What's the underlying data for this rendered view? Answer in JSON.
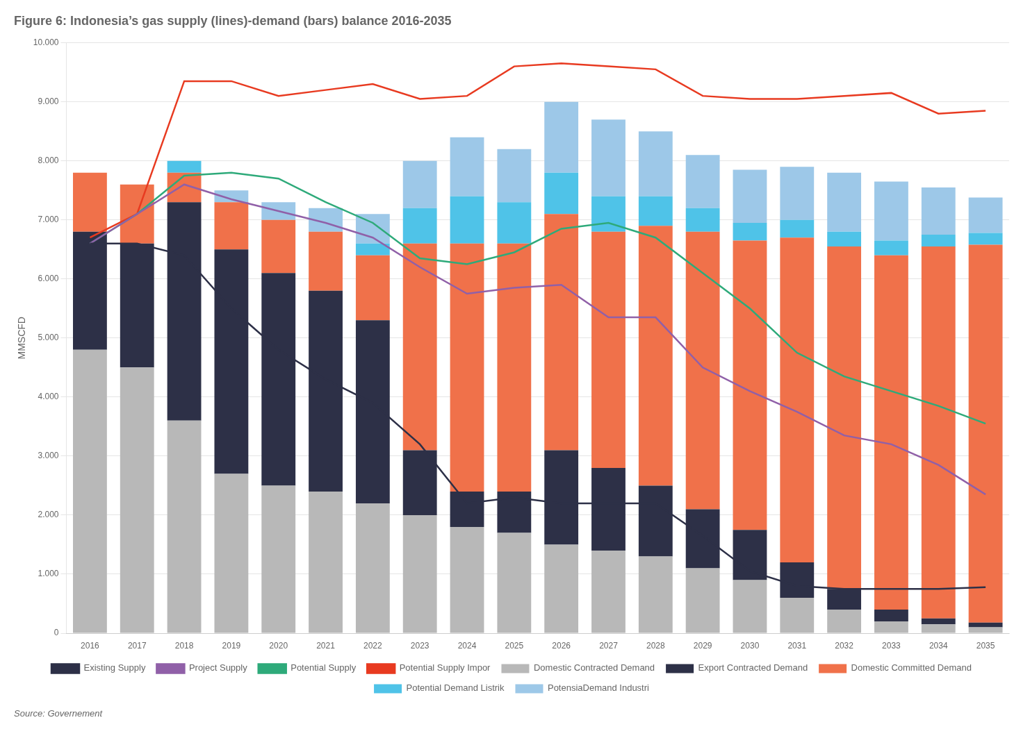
{
  "chart_data": {
    "type": "bar",
    "title": "Figure 6: Indonesia’s gas supply (lines)-demand (bars) balance 2016-2035",
    "ylabel": "MMSCFD",
    "source": "Source: Governement",
    "categories": [
      2016,
      2017,
      2018,
      2019,
      2020,
      2021,
      2022,
      2023,
      2024,
      2025,
      2026,
      2027,
      2028,
      2029,
      2030,
      2031,
      2032,
      2033,
      2034,
      2035
    ],
    "ylim": [
      0,
      10000
    ],
    "yticks": [
      0,
      {
        "value": 1000,
        "label": "1.000"
      },
      {
        "value": 2000,
        "label": "2.000"
      },
      {
        "value": 3000,
        "label": "3.000"
      },
      {
        "value": 4000,
        "label": "4.000"
      },
      {
        "value": 5000,
        "label": "5.000"
      },
      {
        "value": 6000,
        "label": "6.000"
      },
      {
        "value": 7000,
        "label": "7.000"
      },
      {
        "value": 8000,
        "label": "8.000"
      },
      {
        "value": 9000,
        "label": "9.000"
      },
      {
        "value": 10000,
        "label": "10.000"
      }
    ],
    "stacked": true,
    "grid": "y",
    "legend": "bottom",
    "series": [
      {
        "name": "Domestic Contracted Demand",
        "type": "bar",
        "color": "#b8b8b8",
        "values": [
          4800,
          4500,
          3600,
          2700,
          2500,
          2400,
          2200,
          2000,
          1800,
          1700,
          1500,
          1400,
          1300,
          1100,
          900,
          600,
          400,
          200,
          150,
          100
        ]
      },
      {
        "name": "Export Contracted Demand",
        "type": "bar",
        "color": "#2d3047",
        "values": [
          2000,
          2100,
          3700,
          3800,
          3600,
          3400,
          3100,
          1100,
          600,
          700,
          1600,
          1400,
          1200,
          1000,
          850,
          600,
          350,
          200,
          100,
          80
        ]
      },
      {
        "name": "Domestic Committed Demand",
        "type": "bar",
        "color": "#f0714a",
        "values": [
          1000,
          1000,
          500,
          800,
          900,
          1000,
          1100,
          3500,
          4200,
          4200,
          4000,
          4000,
          4400,
          4700,
          4900,
          5500,
          5800,
          6000,
          6300,
          6400
        ]
      },
      {
        "name": "Potential Demand Listrik",
        "type": "bar",
        "color": "#4fc3e8",
        "values": [
          0,
          0,
          200,
          0,
          0,
          0,
          200,
          600,
          800,
          700,
          700,
          600,
          500,
          400,
          300,
          300,
          250,
          250,
          200,
          200
        ]
      },
      {
        "name": "PotensiaDemand Industri",
        "type": "bar",
        "color": "#9dc8e8",
        "values": [
          0,
          0,
          0,
          200,
          300,
          400,
          500,
          800,
          1000,
          900,
          1200,
          1300,
          1100,
          900,
          900,
          900,
          1000,
          1000,
          800,
          600
        ]
      },
      {
        "name": "Existing Supply",
        "type": "line",
        "color": "#2d3047",
        "values": [
          6600,
          6600,
          6400,
          5500,
          4800,
          4300,
          3900,
          3200,
          2200,
          2300,
          2200,
          2200,
          2200,
          1650,
          1050,
          800,
          750,
          750,
          750,
          780
        ]
      },
      {
        "name": "Project Supply",
        "type": "line",
        "color": "#9060a8",
        "values": [
          6600,
          7100,
          7600,
          7350,
          7150,
          6950,
          6700,
          6200,
          5750,
          5850,
          5900,
          5350,
          5350,
          4500,
          4100,
          3750,
          3350,
          3200,
          2850,
          2350
        ]
      },
      {
        "name": "Potential Supply",
        "type": "line",
        "color": "#2eaa7a",
        "values": [
          6600,
          7100,
          7750,
          7800,
          7700,
          7300,
          6950,
          6350,
          6250,
          6450,
          6850,
          6950,
          6700,
          6100,
          5500,
          4750,
          4350,
          4100,
          3850,
          3550
        ]
      },
      {
        "name": "Potential Supply Impor",
        "type": "line",
        "color": "#e83a20",
        "values": [
          6700,
          7100,
          9350,
          9350,
          9100,
          9200,
          9300,
          9050,
          9100,
          9600,
          9650,
          9600,
          9550,
          9100,
          9050,
          9050,
          9100,
          9150,
          8800,
          8850
        ]
      }
    ]
  }
}
